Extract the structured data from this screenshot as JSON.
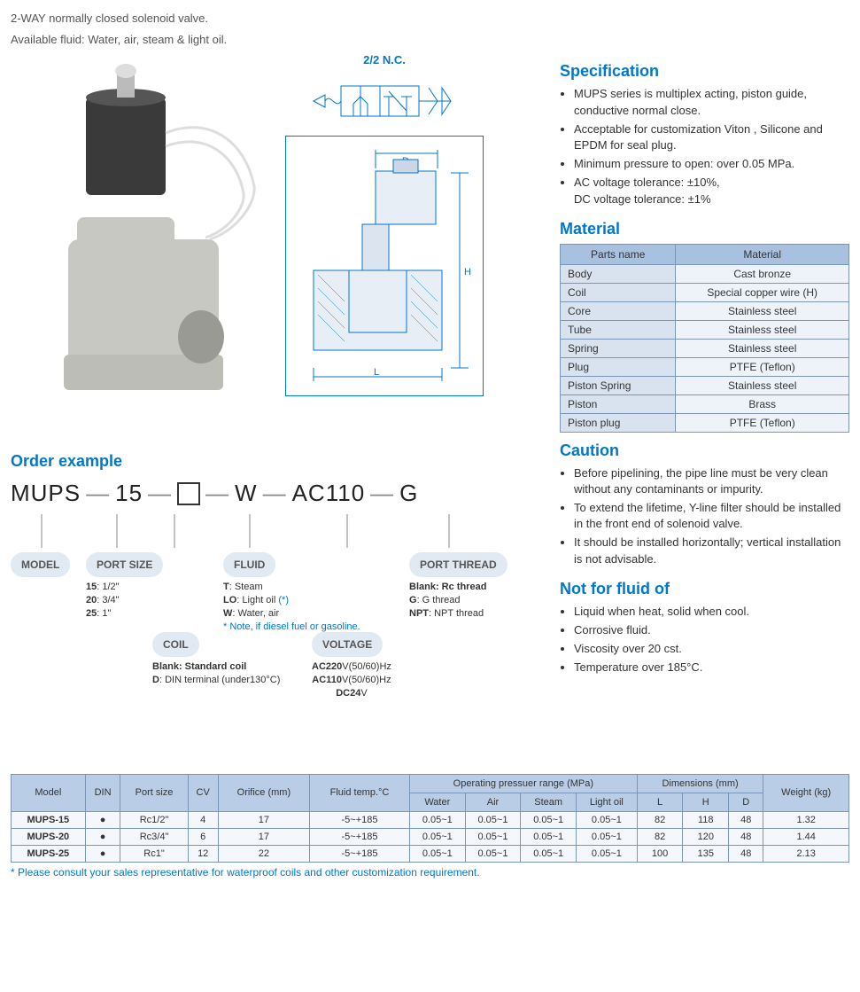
{
  "header": {
    "line1": "2-WAY normally closed solenoid valve.",
    "line2": "Available fluid: Water, air, steam & light oil."
  },
  "schematic": {
    "symbol_label": "2/2 N.C.",
    "dim_D": "D",
    "dim_H": "H",
    "dim_L": "L"
  },
  "order": {
    "heading": "Order example",
    "parts": [
      "MUPS",
      "15",
      "□",
      "W",
      "AC110",
      "G"
    ],
    "labels": {
      "model": "MODEL",
      "port_size": "PORT SIZE",
      "coil": "COIL",
      "fluid": "FLUID",
      "voltage": "VOLTAGE",
      "port_thread": "PORT THREAD"
    },
    "port_size_opts": [
      [
        "15",
        ": 1/2\""
      ],
      [
        "20",
        ": 3/4\""
      ],
      [
        "25",
        ": 1\""
      ]
    ],
    "coil_opts": [
      [
        "Blank: Standard coil",
        ""
      ],
      [
        "D",
        ": DIN terminal (under130°C)"
      ]
    ],
    "fluid_opts": [
      [
        "T",
        ": Steam"
      ],
      [
        "LO",
        ": Light oil "
      ],
      [
        "W",
        ": Water, air"
      ]
    ],
    "fluid_star": "(*)",
    "fluid_note": "* Note, if diesel fuel or gasoline.",
    "voltage_opts": [
      [
        "AC220",
        "V(50/60)Hz"
      ],
      [
        "AC110",
        "V(50/60)Hz"
      ],
      [
        "DC24",
        "V"
      ]
    ],
    "thread_opts": [
      [
        "Blank: Rc thread",
        ""
      ],
      [
        "G",
        ": G thread"
      ],
      [
        "NPT",
        ": NPT thread"
      ]
    ]
  },
  "spec": {
    "heading": "Specification",
    "items": [
      "MUPS series is multiplex acting, piston guide, conductive normal close.",
      "Acceptable for customization Viton , Silicone and EPDM for seal plug.",
      "Minimum pressure to open: over 0.05 MPa.",
      "AC voltage tolerance: ±10%,\nDC voltage tolerance: ±1%"
    ]
  },
  "material": {
    "heading": "Material",
    "head": [
      "Parts name",
      "Material"
    ],
    "rows": [
      [
        "Body",
        "Cast bronze"
      ],
      [
        "Coil",
        "Special copper wire (H)"
      ],
      [
        "Core",
        "Stainless steel"
      ],
      [
        "Tube",
        "Stainless steel"
      ],
      [
        "Spring",
        "Stainless steel"
      ],
      [
        "Plug",
        "PTFE (Teflon)"
      ],
      [
        "Piston Spring",
        "Stainless steel"
      ],
      [
        "Piston",
        "Brass"
      ],
      [
        "Piston plug",
        "PTFE (Teflon)"
      ]
    ]
  },
  "caution": {
    "heading": "Caution",
    "items": [
      "Before pipelining, the pipe line must be very clean without any contaminants or impurity.",
      "To extend the lifetime, Y-line filter should be installed in the front end of solenoid valve.",
      "It should be installed horizontally; vertical installation is not advisable."
    ]
  },
  "notfor": {
    "heading": "Not for fluid of",
    "items": [
      "Liquid when heat, solid when cool.",
      "Corrosive fluid.",
      "Viscosity over 20 cst.",
      "Temperature over 185°C."
    ]
  },
  "spectable": {
    "head_top": [
      "Model",
      "DIN",
      "Port size",
      "CV",
      "Orifice (mm)",
      "Fluid temp.°C",
      "Operating pressuer range (MPa)",
      "Dimensions (mm)",
      "Weight (kg)"
    ],
    "head_sub_pressure": [
      "Water",
      "Air",
      "Steam",
      "Light oil"
    ],
    "head_sub_dim": [
      "L",
      "H",
      "D"
    ],
    "rows": [
      [
        "MUPS-15",
        "●",
        "Rc1/2\"",
        "4",
        "17",
        "-5~+185",
        "0.05~1",
        "0.05~1",
        "0.05~1",
        "0.05~1",
        "82",
        "118",
        "48",
        "1.32"
      ],
      [
        "MUPS-20",
        "●",
        "Rc3/4\"",
        "6",
        "17",
        "-5~+185",
        "0.05~1",
        "0.05~1",
        "0.05~1",
        "0.05~1",
        "82",
        "120",
        "48",
        "1.44"
      ],
      [
        "MUPS-25",
        "●",
        "Rc1\"",
        "12",
        "22",
        "-5~+185",
        "0.05~1",
        "0.05~1",
        "0.05~1",
        "0.05~1",
        "100",
        "135",
        "48",
        "2.13"
      ]
    ]
  },
  "footnote": "* Please consult your sales representative for waterproof coils and other customization requirement.",
  "colors": {
    "accent": "#0077c8",
    "th_bg": "#b9cde6",
    "td_bg": "#f4f7fb"
  }
}
